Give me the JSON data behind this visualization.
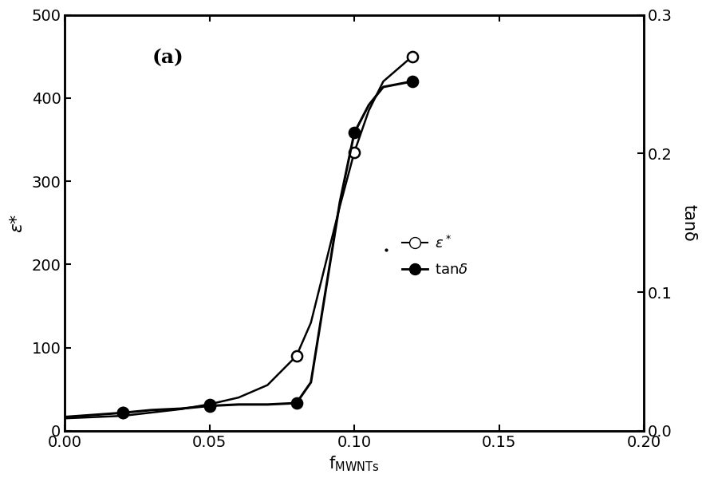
{
  "title_label": "(a)",
  "xlabel": "f",
  "xlabel_sub": "MWNTs",
  "ylabel_left": "ε*",
  "ylabel_right": "tanδ",
  "xlim": [
    0.0,
    0.2
  ],
  "ylim_left": [
    0,
    500
  ],
  "ylim_right": [
    0.0,
    0.3
  ],
  "xticks": [
    0.0,
    0.05,
    0.1,
    0.15,
    0.2
  ],
  "yticks_left": [
    0,
    100,
    200,
    300,
    400,
    500
  ],
  "yticks_right": [
    0.0,
    0.1,
    0.2,
    0.3
  ],
  "eps_data_x": [
    0.02,
    0.05,
    0.08,
    0.1,
    0.12
  ],
  "eps_data_y": [
    22,
    32,
    90,
    335,
    450
  ],
  "tand_data_x": [
    0.02,
    0.05,
    0.08,
    0.1,
    0.12
  ],
  "tand_data_y": [
    0.013,
    0.018,
    0.02,
    0.215,
    0.252
  ],
  "curve_eps_x": [
    0.0,
    0.02,
    0.03,
    0.04,
    0.05,
    0.06,
    0.07,
    0.08,
    0.085,
    0.09,
    0.095,
    0.1,
    0.105,
    0.11,
    0.12
  ],
  "curve_eps_y": [
    15,
    18,
    22,
    26,
    32,
    40,
    55,
    90,
    130,
    200,
    270,
    335,
    385,
    420,
    450
  ],
  "curve_tand_x": [
    0.0,
    0.02,
    0.03,
    0.04,
    0.05,
    0.06,
    0.07,
    0.08,
    0.085,
    0.09,
    0.095,
    0.1,
    0.105,
    0.11,
    0.12
  ],
  "curve_tand_y": [
    0.01,
    0.013,
    0.015,
    0.016,
    0.018,
    0.019,
    0.019,
    0.02,
    0.035,
    0.1,
    0.165,
    0.215,
    0.235,
    0.248,
    0.252
  ],
  "background_color": "#ffffff",
  "line_color": "#000000",
  "marker_open_color": "#ffffff",
  "marker_filled_color": "#000000"
}
